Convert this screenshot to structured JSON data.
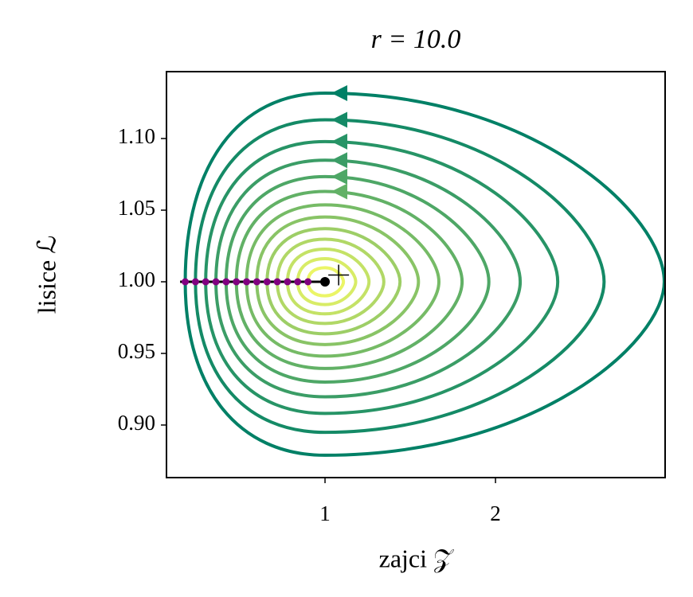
{
  "chart_data": {
    "type": "phase",
    "title": "r = 10.0",
    "xlabel": "zajci 𝒵",
    "ylabel": "lisice ℒ",
    "xlim": [
      0.07,
      2.995
    ],
    "ylim": [
      0.8633,
      1.1467
    ],
    "xticks": [
      1,
      2
    ],
    "yticks": [
      {
        "value": 0.9,
        "label": "0.90"
      },
      0.95,
      {
        "value": 1.0,
        "label": "1.00"
      },
      1.05,
      {
        "value": 1.1,
        "label": "1.10"
      }
    ],
    "series": [
      {
        "color": "#008066",
        "arrow": true,
        "x": [
          0.18,
          1,
          2.99,
          1
        ],
        "y": [
          1,
          0.8789,
          1,
          1.1317
        ]
      },
      {
        "color": "#148a66",
        "arrow": true,
        "x": [
          0.24,
          1,
          2.637,
          1
        ],
        "y": [
          1,
          0.8949,
          1,
          1.1131
        ]
      },
      {
        "color": "#279466",
        "arrow": true,
        "x": [
          0.3,
          1,
          2.365,
          1
        ],
        "y": [
          1,
          0.9081,
          1,
          1.0979
        ]
      },
      {
        "color": "#3b9d66",
        "arrow": true,
        "x": [
          0.36,
          1,
          2.145,
          1
        ],
        "y": [
          1,
          0.9197,
          1,
          1.0849
        ]
      },
      {
        "color": "#4ea766",
        "arrow": true,
        "x": [
          0.42,
          1,
          1.961,
          1
        ],
        "y": [
          1,
          0.93,
          1,
          1.0734
        ]
      },
      {
        "color": "#62b166",
        "arrow": true,
        "x": [
          0.48,
          1,
          1.804,
          1
        ],
        "y": [
          1,
          0.9395,
          1,
          1.0631
        ]
      },
      {
        "color": "#76bb66",
        "arrow": false,
        "x": [
          0.54,
          1,
          1.668,
          1
        ],
        "y": [
          1,
          0.9481,
          1,
          1.0537
        ]
      },
      {
        "color": "#89c466",
        "arrow": false,
        "x": [
          0.6,
          1,
          1.548,
          1
        ],
        "y": [
          1,
          0.9562,
          1,
          1.0452
        ]
      },
      {
        "color": "#9dce66",
        "arrow": false,
        "x": [
          0.66,
          1,
          1.44,
          1
        ],
        "y": [
          1,
          0.9637,
          1,
          1.0371
        ]
      },
      {
        "color": "#b1d866",
        "arrow": false,
        "x": [
          0.72,
          1,
          1.345,
          1
        ],
        "y": [
          1,
          0.9709,
          1,
          1.0297
        ]
      },
      {
        "color": "#c4e266",
        "arrow": false,
        "x": [
          0.78,
          1,
          1.258,
          1
        ],
        "y": [
          1,
          0.9776,
          1,
          1.0228
        ]
      },
      {
        "color": "#d8ec66",
        "arrow": false,
        "x": [
          0.84,
          1,
          1.18,
          1
        ],
        "y": [
          1,
          0.9841,
          1,
          1.0161
        ]
      },
      {
        "color": "#ebf566",
        "arrow": false,
        "x": [
          0.9,
          1,
          1.108,
          1
        ],
        "y": [
          1,
          0.9902,
          1,
          1.0098
        ]
      }
    ],
    "segment": {
      "x": [
        0.15,
        1.0
      ],
      "y": [
        1.0,
        1.0
      ],
      "color": "#000000"
    },
    "start_points": {
      "x": [
        0.18,
        0.24,
        0.3,
        0.36,
        0.42,
        0.48,
        0.54,
        0.6,
        0.66,
        0.72,
        0.78,
        0.84,
        0.9
      ],
      "y": [
        1,
        1,
        1,
        1,
        1,
        1,
        1,
        1,
        1,
        1,
        1,
        1,
        1
      ],
      "color": "#800080"
    },
    "equilibrium": {
      "x": 1.0,
      "y": 1.0,
      "color": "#000000"
    },
    "cross": {
      "x": 1.08,
      "y": 1.0047,
      "color": "#000000"
    }
  }
}
